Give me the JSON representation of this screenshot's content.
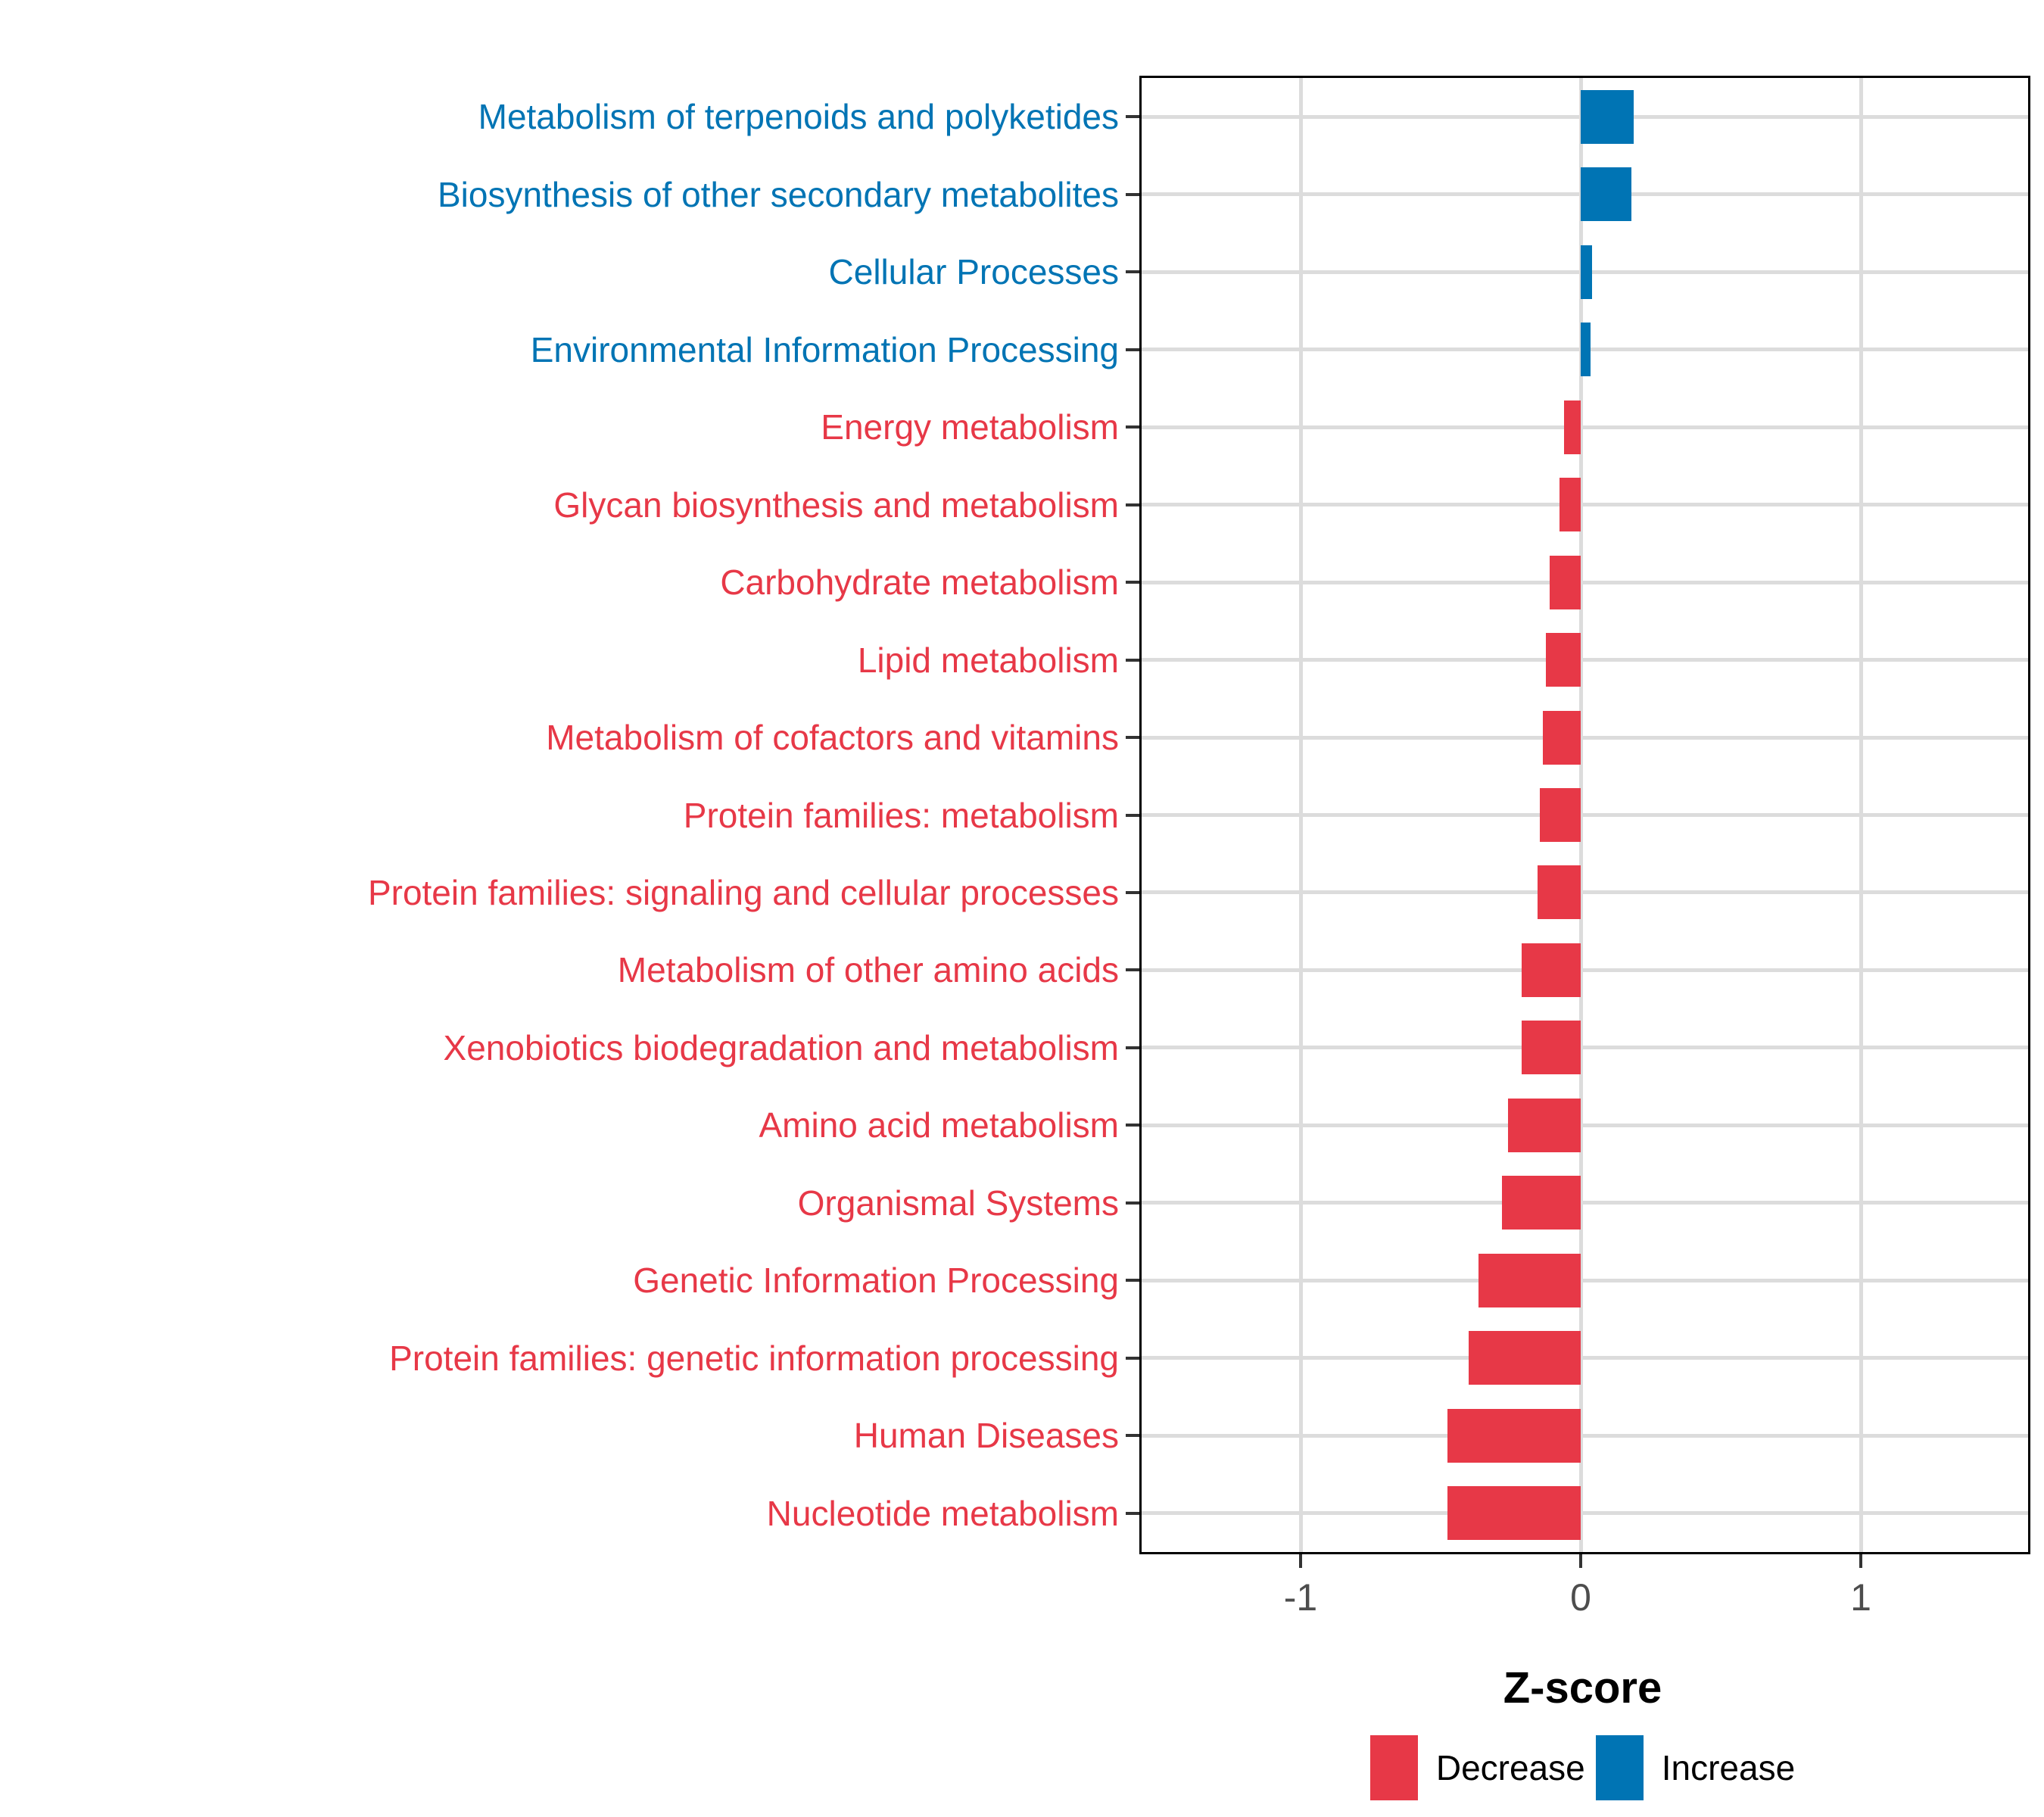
{
  "chart_data": {
    "type": "bar",
    "orientation": "horizontal",
    "title": "",
    "xlabel": "Z-score",
    "ylabel": "",
    "x_ticks": [
      -1,
      0,
      1
    ],
    "xlim": [
      -1.57,
      1.6
    ],
    "grid": "major-only",
    "legend_position": "bottom",
    "categories": [
      "Metabolism of terpenoids and polyketides",
      "Biosynthesis of other secondary metabolites",
      "Cellular Processes",
      "Environmental Information Processing",
      "Energy metabolism",
      "Glycan biosynthesis and metabolism",
      "Carbohydrate metabolism",
      "Lipid metabolism",
      "Metabolism of cofactors and vitamins",
      "Protein families: metabolism",
      "Protein families: signaling and cellular processes",
      "Metabolism of other amino acids",
      "Xenobiotics biodegradation and metabolism",
      "Amino acid metabolism",
      "Organismal Systems",
      "Genetic Information Processing",
      "Protein families: genetic information processing",
      "Human Diseases",
      "Nucleotide metabolism"
    ],
    "values": [
      0.19,
      0.18,
      0.04,
      0.035,
      -0.06,
      -0.075,
      -0.11,
      -0.125,
      -0.135,
      -0.145,
      -0.155,
      -0.21,
      -0.21,
      -0.26,
      -0.28,
      -0.365,
      -0.4,
      -0.475,
      -0.475
    ],
    "directions": [
      "Increase",
      "Increase",
      "Increase",
      "Increase",
      "Decrease",
      "Decrease",
      "Decrease",
      "Decrease",
      "Decrease",
      "Decrease",
      "Decrease",
      "Decrease",
      "Decrease",
      "Decrease",
      "Decrease",
      "Decrease",
      "Decrease",
      "Decrease",
      "Decrease"
    ],
    "colors": {
      "Increase": "#0074B4",
      "Decrease": "#E73847"
    },
    "legend": [
      {
        "label": "Decrease",
        "color": "#E73847"
      },
      {
        "label": "Increase",
        "color": "#0074B4"
      }
    ]
  },
  "palette": {
    "grid": "#DCDCDC",
    "axis_text": "#4D4D4D",
    "axis_title": "#000000",
    "panel_border": "#000000",
    "background": "#FFFFFF"
  }
}
